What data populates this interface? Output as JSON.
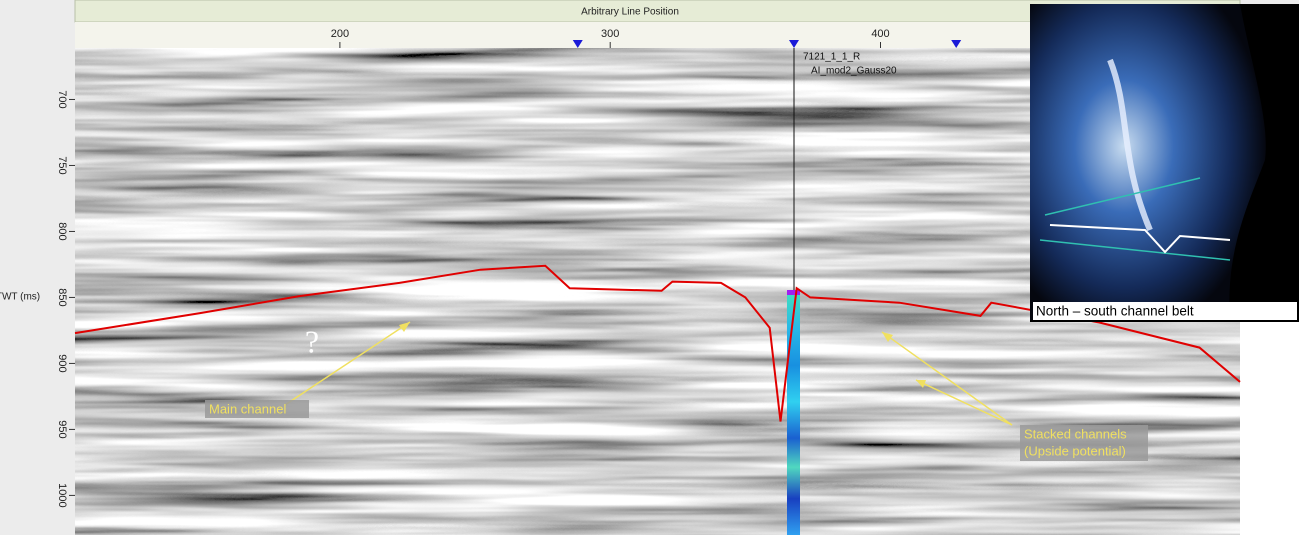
{
  "chart_data": {
    "type": "seismic-section",
    "title": "Arbitrary Line Position",
    "y_label": "TWT (ms)",
    "xlim": [
      102,
      533
    ],
    "xticks": [
      200,
      300,
      400
    ],
    "ylim": [
      661,
      1030
    ],
    "yticks": [
      700,
      750,
      800,
      850,
      900,
      950,
      1000
    ],
    "well_markers_x": [
      288,
      368,
      428
    ],
    "well_marker_color": "#1a1ad8",
    "well_x": 368,
    "well_name": "7121_1_1_R",
    "log_name": "AI_mod2_Gauss20",
    "horizon": {
      "color": "#e00000",
      "x": [
        102,
        148,
        185,
        222,
        252,
        276,
        285,
        319,
        323,
        341,
        350,
        359,
        363,
        369,
        374,
        407,
        437,
        441,
        481,
        518,
        533
      ],
      "values": [
        877,
        862,
        849,
        839,
        829,
        826,
        843,
        845,
        838,
        839,
        850,
        873,
        944,
        843,
        850,
        854,
        864,
        854,
        869,
        888,
        914
      ]
    },
    "annotations": [
      "?",
      "Main channel",
      "Stacked channels",
      "(Upside potential)"
    ],
    "inset_caption": "North – south channel belt"
  }
}
